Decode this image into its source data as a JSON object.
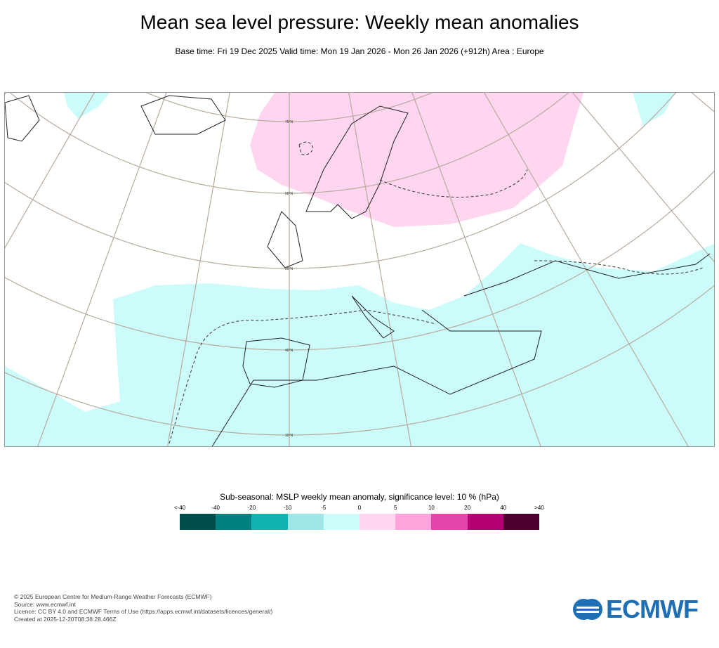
{
  "title": "Mean sea level pressure: Weekly mean anomalies",
  "subtitle": "Base time: Fri 19 Dec 2025 Valid time: Mon 19 Jan 2026 - Mon 26 Jan 2026 (+912h) Area : Europe",
  "map": {
    "lat_labels": [
      "70°N",
      "60°N",
      "50°N",
      "40°N",
      "30°N"
    ],
    "colors": {
      "positive": "#ffd5f0",
      "negative": "#ccfbfb",
      "graticule": "#b7ab9c",
      "coast": "#222222"
    }
  },
  "legend": {
    "title": "Sub-seasonal: MSLP weekly mean anomaly, significance level: 10 % (hPa)",
    "ticks": [
      "<-40",
      "-40",
      "-20",
      "-10",
      "-5",
      "0",
      "5",
      "10",
      "20",
      "40",
      ">40"
    ],
    "colors": [
      "#004d4d",
      "#008080",
      "#11b3b3",
      "#a1e6e6",
      "#ccfbfb",
      "#ffd5f0",
      "#ffa3dd",
      "#e645ac",
      "#b30073",
      "#4d0030"
    ]
  },
  "footer": {
    "line1": "© 2025 European Centre for Medium-Range Weather Forecasts (ECMWF)",
    "line2": "Source: www.ecmwf.int",
    "line3": "Licence: CC BY 4.0 and ECMWF Terms of Use (https://apps.ecmwf.int/datasets/licences/general/)",
    "line4": "Created at 2025-12-20T08:38:28.466Z"
  },
  "logo": {
    "text": "ECMWF"
  }
}
